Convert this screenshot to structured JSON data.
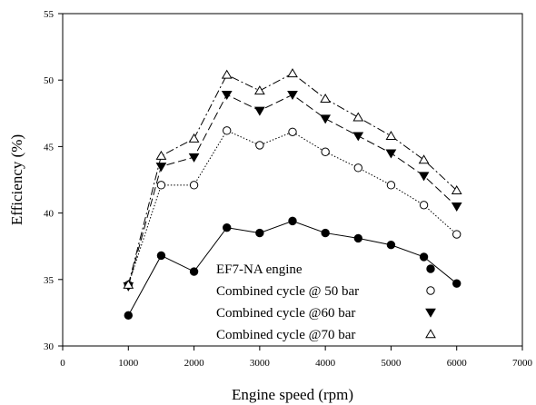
{
  "chart_data": {
    "type": "line",
    "title": "",
    "xlabel": "Engine speed (rpm)",
    "ylabel": "Efficiency (%)",
    "xlim": [
      0,
      7000
    ],
    "ylim": [
      30,
      55
    ],
    "x_ticks": [
      "0",
      "1000",
      "2000",
      "3000",
      "4000",
      "5000",
      "6000",
      "7000"
    ],
    "y_ticks": [
      "30",
      "35",
      "40",
      "45",
      "50",
      "55"
    ],
    "grid": false,
    "legend_position": "bottom-center",
    "x": [
      1000,
      1500,
      2000,
      2500,
      3000,
      3500,
      4000,
      4500,
      5000,
      5500,
      6000
    ],
    "series": [
      {
        "name": "EF7-NA engine",
        "marker": "filled-circle",
        "line_style": "solid",
        "values": [
          32.3,
          36.8,
          35.6,
          38.9,
          38.5,
          39.4,
          38.5,
          38.1,
          37.6,
          36.7,
          34.7
        ]
      },
      {
        "name": "Combined cycle @ 50 bar",
        "marker": "open-circle",
        "line_style": "dotted",
        "values": [
          34.6,
          42.1,
          42.1,
          46.2,
          45.1,
          46.1,
          44.6,
          43.4,
          42.1,
          40.6,
          38.4
        ]
      },
      {
        "name": "Combined cycle @60 bar",
        "marker": "filled-triangle-down",
        "line_style": "dashed",
        "values": [
          34.5,
          43.5,
          44.2,
          48.9,
          47.7,
          48.9,
          47.1,
          45.8,
          44.5,
          42.8,
          40.5
        ]
      },
      {
        "name": "Combined cycle @70 bar",
        "marker": "open-triangle-up",
        "line_style": "dash-dot",
        "values": [
          34.6,
          44.3,
          45.6,
          50.4,
          49.2,
          50.5,
          48.6,
          47.2,
          45.8,
          44.0,
          41.7
        ]
      }
    ]
  }
}
